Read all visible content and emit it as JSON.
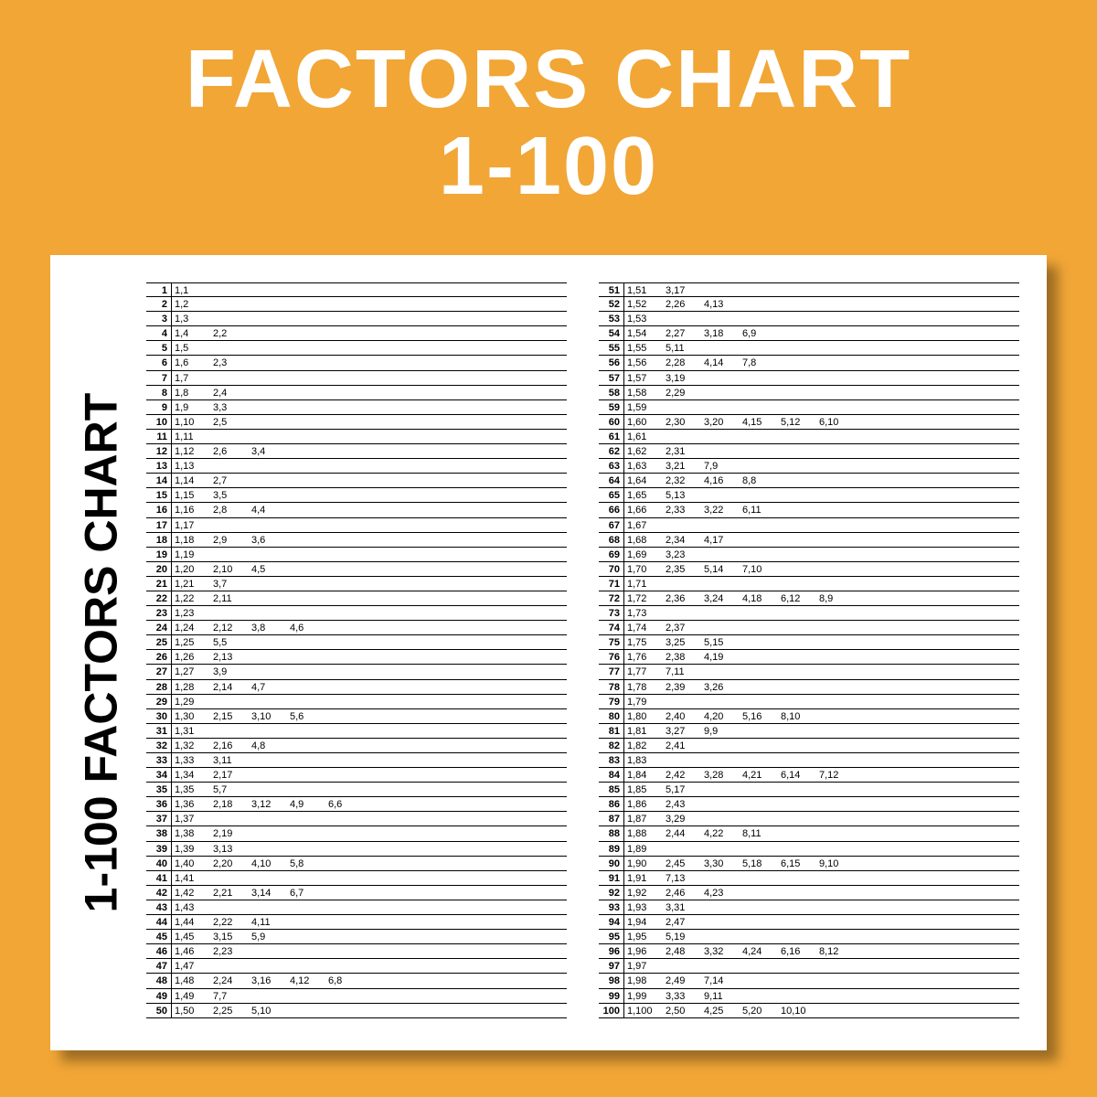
{
  "colors": {
    "background": "#f1a636",
    "sheet": "#ffffff",
    "text": "#000000",
    "title": "#ffffff",
    "shadow": "rgba(0,0,0,0.35)"
  },
  "title_line1": "FACTORS CHART",
  "title_line2": "1-100",
  "side_label": "1-100 FACTORS CHART",
  "chart": {
    "type": "table",
    "left": [
      {
        "n": "1",
        "pairs": [
          "1,1"
        ]
      },
      {
        "n": "2",
        "pairs": [
          "1,2"
        ]
      },
      {
        "n": "3",
        "pairs": [
          "1,3"
        ]
      },
      {
        "n": "4",
        "pairs": [
          "1,4",
          "2,2"
        ]
      },
      {
        "n": "5",
        "pairs": [
          "1,5"
        ]
      },
      {
        "n": "6",
        "pairs": [
          "1,6",
          "2,3"
        ]
      },
      {
        "n": "7",
        "pairs": [
          "1,7"
        ]
      },
      {
        "n": "8",
        "pairs": [
          "1,8",
          "2,4"
        ]
      },
      {
        "n": "9",
        "pairs": [
          "1,9",
          "3,3"
        ]
      },
      {
        "n": "10",
        "pairs": [
          "1,10",
          "2,5"
        ]
      },
      {
        "n": "11",
        "pairs": [
          "1,11"
        ]
      },
      {
        "n": "12",
        "pairs": [
          "1,12",
          "2,6",
          "3,4"
        ]
      },
      {
        "n": "13",
        "pairs": [
          "1,13"
        ]
      },
      {
        "n": "14",
        "pairs": [
          "1,14",
          "2,7"
        ]
      },
      {
        "n": "15",
        "pairs": [
          "1,15",
          "3,5"
        ]
      },
      {
        "n": "16",
        "pairs": [
          "1,16",
          "2,8",
          "4,4"
        ]
      },
      {
        "n": "17",
        "pairs": [
          "1,17"
        ]
      },
      {
        "n": "18",
        "pairs": [
          "1,18",
          "2,9",
          "3,6"
        ]
      },
      {
        "n": "19",
        "pairs": [
          "1,19"
        ]
      },
      {
        "n": "20",
        "pairs": [
          "1,20",
          "2,10",
          "4,5"
        ]
      },
      {
        "n": "21",
        "pairs": [
          "1,21",
          "3,7"
        ]
      },
      {
        "n": "22",
        "pairs": [
          "1,22",
          "2,11"
        ]
      },
      {
        "n": "23",
        "pairs": [
          "1,23"
        ]
      },
      {
        "n": "24",
        "pairs": [
          "1,24",
          "2,12",
          "3,8",
          "4,6"
        ]
      },
      {
        "n": "25",
        "pairs": [
          "1,25",
          "5,5"
        ]
      },
      {
        "n": "26",
        "pairs": [
          "1,26",
          "2,13"
        ]
      },
      {
        "n": "27",
        "pairs": [
          "1,27",
          "3,9"
        ]
      },
      {
        "n": "28",
        "pairs": [
          "1,28",
          "2,14",
          "4,7"
        ]
      },
      {
        "n": "29",
        "pairs": [
          "1,29"
        ]
      },
      {
        "n": "30",
        "pairs": [
          "1,30",
          "2,15",
          "3,10",
          "5,6"
        ]
      },
      {
        "n": "31",
        "pairs": [
          "1,31"
        ]
      },
      {
        "n": "32",
        "pairs": [
          "1,32",
          "2,16",
          "4,8"
        ]
      },
      {
        "n": "33",
        "pairs": [
          "1,33",
          "3,11"
        ]
      },
      {
        "n": "34",
        "pairs": [
          "1,34",
          "2,17"
        ]
      },
      {
        "n": "35",
        "pairs": [
          "1,35",
          "5,7"
        ]
      },
      {
        "n": "36",
        "pairs": [
          "1,36",
          "2,18",
          "3,12",
          "4,9",
          "6,6"
        ]
      },
      {
        "n": "37",
        "pairs": [
          "1,37"
        ]
      },
      {
        "n": "38",
        "pairs": [
          "1,38",
          "2,19"
        ]
      },
      {
        "n": "39",
        "pairs": [
          "1,39",
          "3,13"
        ]
      },
      {
        "n": "40",
        "pairs": [
          "1,40",
          "2,20",
          "4,10",
          "5,8"
        ]
      },
      {
        "n": "41",
        "pairs": [
          "1,41"
        ]
      },
      {
        "n": "42",
        "pairs": [
          "1,42",
          "2,21",
          "3,14",
          "6,7"
        ]
      },
      {
        "n": "43",
        "pairs": [
          "1,43"
        ]
      },
      {
        "n": "44",
        "pairs": [
          "1,44",
          "2,22",
          "4,11"
        ]
      },
      {
        "n": "45",
        "pairs": [
          "1,45",
          "3,15",
          "5,9"
        ]
      },
      {
        "n": "46",
        "pairs": [
          "1,46",
          "2,23"
        ]
      },
      {
        "n": "47",
        "pairs": [
          "1,47"
        ]
      },
      {
        "n": "48",
        "pairs": [
          "1,48",
          "2,24",
          "3,16",
          "4,12",
          "6,8"
        ]
      },
      {
        "n": "49",
        "pairs": [
          "1,49",
          "7,7"
        ]
      },
      {
        "n": "50",
        "pairs": [
          "1,50",
          "2,25",
          "5,10"
        ]
      }
    ],
    "right": [
      {
        "n": "51",
        "pairs": [
          "1,51",
          "3,17"
        ]
      },
      {
        "n": "52",
        "pairs": [
          "1,52",
          "2,26",
          "4,13"
        ]
      },
      {
        "n": "53",
        "pairs": [
          "1,53"
        ]
      },
      {
        "n": "54",
        "pairs": [
          "1,54",
          "2,27",
          "3,18",
          "6,9"
        ]
      },
      {
        "n": "55",
        "pairs": [
          "1,55",
          "5,11"
        ]
      },
      {
        "n": "56",
        "pairs": [
          "1,56",
          "2,28",
          "4,14",
          "7,8"
        ]
      },
      {
        "n": "57",
        "pairs": [
          "1,57",
          "3,19"
        ]
      },
      {
        "n": "58",
        "pairs": [
          "1,58",
          "2,29"
        ]
      },
      {
        "n": "59",
        "pairs": [
          "1,59"
        ]
      },
      {
        "n": "60",
        "pairs": [
          "1,60",
          "2,30",
          "3,20",
          "4,15",
          "5,12",
          "6,10"
        ]
      },
      {
        "n": "61",
        "pairs": [
          "1,61"
        ]
      },
      {
        "n": "62",
        "pairs": [
          "1,62",
          "2,31"
        ]
      },
      {
        "n": "63",
        "pairs": [
          "1,63",
          "3,21",
          "7,9"
        ]
      },
      {
        "n": "64",
        "pairs": [
          "1,64",
          "2,32",
          "4,16",
          "8,8"
        ]
      },
      {
        "n": "65",
        "pairs": [
          "1,65",
          "5,13"
        ]
      },
      {
        "n": "66",
        "pairs": [
          "1,66",
          "2,33",
          "3,22",
          "6,11"
        ]
      },
      {
        "n": "67",
        "pairs": [
          "1,67"
        ]
      },
      {
        "n": "68",
        "pairs": [
          "1,68",
          "2,34",
          "4,17"
        ]
      },
      {
        "n": "69",
        "pairs": [
          "1,69",
          "3,23"
        ]
      },
      {
        "n": "70",
        "pairs": [
          "1,70",
          "2,35",
          "5,14",
          "7,10"
        ]
      },
      {
        "n": "71",
        "pairs": [
          "1,71"
        ]
      },
      {
        "n": "72",
        "pairs": [
          "1,72",
          "2,36",
          "3,24",
          "4,18",
          "6,12",
          "8,9"
        ]
      },
      {
        "n": "73",
        "pairs": [
          "1,73"
        ]
      },
      {
        "n": "74",
        "pairs": [
          "1,74",
          "2,37"
        ]
      },
      {
        "n": "75",
        "pairs": [
          "1,75",
          "3,25",
          "5,15"
        ]
      },
      {
        "n": "76",
        "pairs": [
          "1,76",
          "2,38",
          "4,19"
        ]
      },
      {
        "n": "77",
        "pairs": [
          "1,77",
          "7,11"
        ]
      },
      {
        "n": "78",
        "pairs": [
          "1,78",
          "2,39",
          "3,26"
        ]
      },
      {
        "n": "79",
        "pairs": [
          "1,79"
        ]
      },
      {
        "n": "80",
        "pairs": [
          "1,80",
          "2,40",
          "4,20",
          "5,16",
          "8,10"
        ]
      },
      {
        "n": "81",
        "pairs": [
          "1,81",
          "3,27",
          "9,9"
        ]
      },
      {
        "n": "82",
        "pairs": [
          "1,82",
          "2,41"
        ]
      },
      {
        "n": "83",
        "pairs": [
          "1,83"
        ]
      },
      {
        "n": "84",
        "pairs": [
          "1,84",
          "2,42",
          "3,28",
          "4,21",
          "6,14",
          "7,12"
        ]
      },
      {
        "n": "85",
        "pairs": [
          "1,85",
          "5,17"
        ]
      },
      {
        "n": "86",
        "pairs": [
          "1,86",
          "2,43"
        ]
      },
      {
        "n": "87",
        "pairs": [
          "1,87",
          "3,29"
        ]
      },
      {
        "n": "88",
        "pairs": [
          "1,88",
          "2,44",
          "4,22",
          "8,11"
        ]
      },
      {
        "n": "89",
        "pairs": [
          "1,89"
        ]
      },
      {
        "n": "90",
        "pairs": [
          "1,90",
          "2,45",
          "3,30",
          "5,18",
          "6,15",
          "9,10"
        ]
      },
      {
        "n": "91",
        "pairs": [
          "1,91",
          "7,13"
        ]
      },
      {
        "n": "92",
        "pairs": [
          "1,92",
          "2,46",
          "4,23"
        ]
      },
      {
        "n": "93",
        "pairs": [
          "1,93",
          "3,31"
        ]
      },
      {
        "n": "94",
        "pairs": [
          "1,94",
          "2,47"
        ]
      },
      {
        "n": "95",
        "pairs": [
          "1,95",
          "5,19"
        ]
      },
      {
        "n": "96",
        "pairs": [
          "1,96",
          "2,48",
          "3,32",
          "4,24",
          "6,16",
          "8,12"
        ]
      },
      {
        "n": "97",
        "pairs": [
          "1,97"
        ]
      },
      {
        "n": "98",
        "pairs": [
          "1,98",
          "2,49",
          "7,14"
        ]
      },
      {
        "n": "99",
        "pairs": [
          "1,99",
          "3,33",
          "9,11"
        ]
      },
      {
        "n": "100",
        "pairs": [
          "1,100",
          "2,50",
          "4,25",
          "5,20",
          "10,10"
        ]
      }
    ]
  }
}
